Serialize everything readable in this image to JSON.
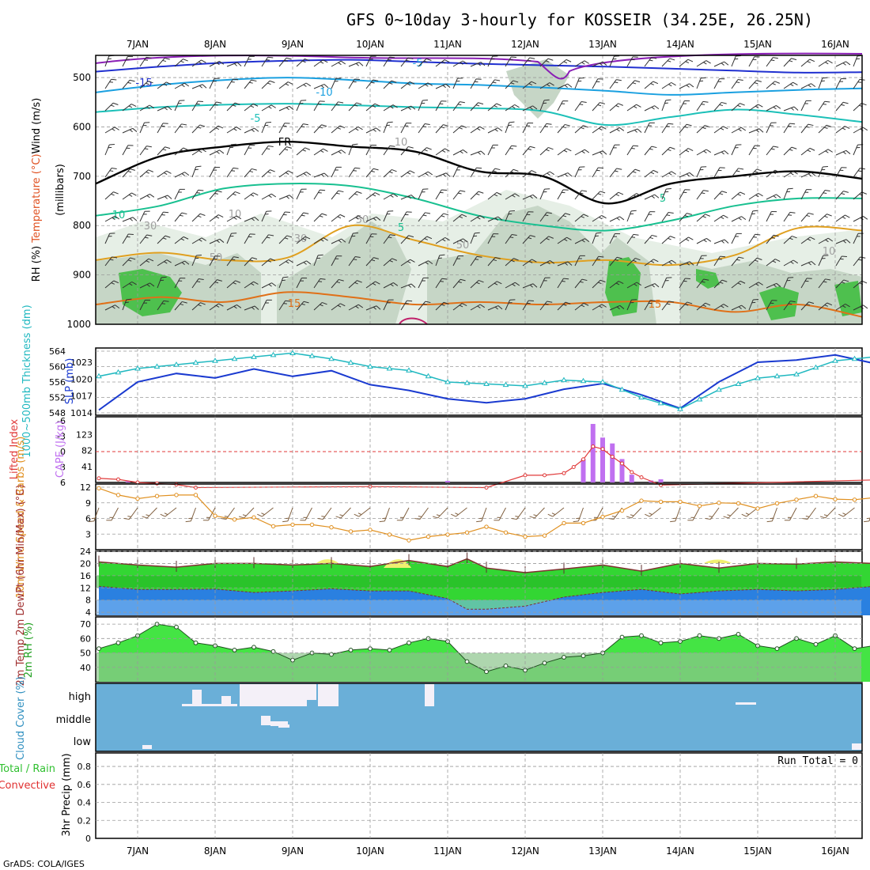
{
  "title": "GFS 0~10day 3-hourly for KOSSEIR (34.25E, 26.25N)",
  "credit": "GrADS: COLA/IGES",
  "colors": {
    "frame": "#000000",
    "grid": "#9a9a9a",
    "temp_cold_violet": "#8a1fb5",
    "temp_m15": "#2030d0",
    "temp_m10": "#1aa0e0",
    "temp_m5": "#1cc0b8",
    "temp_fr": "#000000",
    "temp_5": "#18c090",
    "temp_10": "#e0a020",
    "temp_15": "#e07018",
    "rh_light": "#e6efe6",
    "rh_mid": "#c6d6c6",
    "rh_dark": "#a8b8a8",
    "rh_green": "#4ec04e",
    "slp": "#1a3ad0",
    "thickness": "#20b8c0",
    "lifted": "#e03a3a",
    "cape": "#c070f0",
    "wind10": "#e09020",
    "wind10_barb": "#806040",
    "temp2m_fill": "#33d633",
    "dew_fill": "#2a80e0",
    "max_fill": "#f0f070",
    "rh2m_fill": "#44e444",
    "rh2m_base": "#8cc48c",
    "cloud_bg": "#6aafd8",
    "cloud_white": "#f4f0f8",
    "precip_total": "#30c030",
    "precip_conv": "#e03030"
  },
  "chart_data": [
    {
      "id": "upper_air",
      "type": "heatmap",
      "xlabel": "",
      "ylabel_words": [
        "RH (%)",
        "Temperature (°C)",
        "Wind (m/s)"
      ],
      "ylabel_unit": "(millibars)",
      "y_ticks": [
        500,
        600,
        700,
        800,
        900,
        1000
      ],
      "ylim": [
        455,
        1000
      ],
      "x_ticks": [
        "7JAN",
        "8JAN",
        "9JAN",
        "10JAN",
        "11JAN",
        "12JAN",
        "13JAN",
        "14JAN",
        "15JAN",
        "16JAN"
      ],
      "contour_labels": [
        "-15",
        "-10",
        "-5",
        "FR",
        "10",
        "5",
        "10",
        "50",
        "30",
        "50",
        "10",
        "5",
        "30",
        "50",
        "10",
        "15",
        "15",
        "-5"
      ],
      "isotherms": [
        {
          "label": "-15",
          "pressure": [
            488,
            478,
            470,
            466,
            464,
            468,
            472,
            475,
            478,
            482,
            486,
            490,
            489
          ]
        },
        {
          "label": "-10",
          "pressure": [
            530,
            515,
            505,
            500,
            505,
            512,
            515,
            520,
            527,
            535,
            530,
            525,
            522
          ]
        },
        {
          "label": "-5",
          "pressure": [
            570,
            560,
            555,
            553,
            556,
            560,
            562,
            568,
            596,
            580,
            565,
            575,
            590
          ]
        },
        {
          "label": "FR",
          "pressure": [
            715,
            660,
            640,
            630,
            640,
            650,
            690,
            700,
            755,
            715,
            700,
            690,
            705
          ]
        },
        {
          "label": "5",
          "pressure": [
            780,
            760,
            725,
            715,
            720,
            745,
            780,
            800,
            810,
            790,
            760,
            745,
            745
          ]
        },
        {
          "label": "10",
          "pressure": [
            870,
            855,
            870,
            865,
            800,
            830,
            860,
            875,
            870,
            880,
            860,
            805,
            810
          ]
        },
        {
          "label": "15",
          "pressure": [
            960,
            945,
            955,
            935,
            945,
            960,
            955,
            960,
            955,
            955,
            975,
            960,
            985
          ]
        }
      ]
    },
    {
      "id": "slp_thickness",
      "type": "line",
      "ylabel_left": "1000~500mb Thickness (dm)",
      "ylabel_right": "SLP (mb)",
      "left_ticks": [
        548,
        552,
        556,
        560,
        564
      ],
      "right_ticks": [
        1014,
        1017,
        1020,
        1023
      ],
      "x_hours": [
        0,
        12,
        24,
        36,
        48,
        60,
        72,
        84,
        96,
        108,
        120,
        132,
        144,
        156,
        168,
        180,
        192,
        204,
        216,
        228,
        240,
        252,
        264,
        270
      ],
      "slp": [
        1014.5,
        1019.5,
        1021,
        1020.2,
        1021.8,
        1020.5,
        1021.5,
        1019,
        1018,
        1016.5,
        1015.8,
        1016.5,
        1018.2,
        1019.2,
        1017.2,
        1014.8,
        1019.5,
        1023,
        1023.4,
        1024.3,
        1022.8,
        1023.8,
        1022,
        1022.5
      ],
      "thickness": [
        557.5,
        559.5,
        560.5,
        561.5,
        562.5,
        563.5,
        562,
        560,
        559,
        556,
        555.5,
        555,
        556.5,
        556,
        552,
        549,
        554,
        557,
        558,
        561.5,
        562.5,
        562.5,
        563,
        560
      ]
    },
    {
      "id": "cape_li",
      "type": "bar",
      "ylabel_left": "Lifted Index",
      "ylabel_right": "CAPE (J/kg)",
      "left_ticks": [
        "6",
        "3",
        "0",
        "-3",
        "-6"
      ],
      "right_ticks": [
        "41",
        "82",
        "123"
      ],
      "cape_hours": [
        9,
        108,
        150,
        153,
        156,
        159,
        162,
        165,
        171,
        174
      ],
      "cape_values": [
        3,
        4,
        60,
        150,
        115,
        100,
        60,
        20,
        5,
        8
      ],
      "li_hours": [
        0,
        6,
        12,
        18,
        24,
        30,
        84,
        120,
        132,
        138,
        144,
        147,
        150,
        153,
        156,
        159,
        162,
        165,
        168,
        174,
        240,
        246,
        252,
        258,
        264,
        270
      ],
      "li_values": [
        5.2,
        5.4,
        6,
        6.2,
        6.4,
        7,
        6.8,
        7,
        4.6,
        4.6,
        4.2,
        3,
        1.5,
        -1,
        -0.5,
        1,
        2.3,
        4,
        5,
        6.5,
        5.5,
        4.8,
        5.5,
        6.5,
        6.8,
        6.4
      ]
    },
    {
      "id": "wind10m",
      "type": "line",
      "ylabel": "10m Wind Speed & Barbs (m/s)",
      "y_ticks": [
        3,
        6,
        9,
        12
      ],
      "ylim": [
        0,
        12
      ],
      "x_hours": [
        0,
        6,
        12,
        18,
        24,
        30,
        36,
        42,
        48,
        54,
        60,
        66,
        72,
        78,
        84,
        90,
        96,
        102,
        108,
        114,
        120,
        126,
        132,
        138,
        144,
        150,
        156,
        162,
        168,
        174,
        180,
        186,
        192,
        198,
        204,
        210,
        216,
        222,
        228,
        234,
        240,
        246,
        252,
        258,
        264,
        270
      ],
      "values": [
        11.8,
        10.5,
        9.8,
        10.3,
        10.5,
        10.5,
        6.5,
        5.8,
        6.2,
        4.5,
        4.8,
        4.8,
        4.3,
        3.5,
        3.8,
        2.9,
        1.8,
        2.5,
        2.9,
        3.3,
        4.4,
        3.3,
        2.5,
        2.7,
        5.1,
        5.1,
        6.3,
        7.5,
        9.4,
        9.2,
        9.2,
        8.4,
        9.0,
        8.9,
        7.9,
        8.9,
        9.6,
        10.3,
        9.7,
        9.6,
        10.0,
        10.5,
        10.2,
        10.8,
        11.2,
        11.0
      ]
    },
    {
      "id": "temp2m",
      "type": "area",
      "ylabel": "2m Temp 2m DewPt (6hr Min/Max) (°C)",
      "y_ticks": [
        4,
        8,
        12,
        16,
        20,
        24
      ],
      "ylim": [
        3,
        24
      ],
      "x_hours": [
        0,
        12,
        24,
        36,
        48,
        60,
        72,
        84,
        96,
        108,
        114,
        120,
        132,
        144,
        156,
        168,
        180,
        192,
        204,
        216,
        228,
        240,
        252,
        264,
        270
      ],
      "temp": [
        20.5,
        19.5,
        18.8,
        20,
        20,
        19.5,
        20,
        19,
        21,
        19,
        21.5,
        18.5,
        17,
        18.2,
        19.5,
        17.5,
        20,
        18.5,
        20,
        19.8,
        20.5,
        20,
        19.5,
        18.5,
        18.5
      ],
      "dewpt": [
        12.5,
        11.5,
        11.5,
        11.6,
        10.5,
        11,
        11.7,
        11,
        11,
        8.5,
        5,
        5,
        6,
        9,
        10.5,
        11.5,
        10,
        11,
        11.5,
        11,
        11.5,
        12.5,
        12,
        12,
        12.5
      ]
    },
    {
      "id": "rh2m",
      "type": "area",
      "ylabel": "2m RH (%)",
      "y_ticks": [
        40,
        50,
        60,
        70
      ],
      "ylim": [
        30,
        75
      ],
      "x_hours": [
        0,
        6,
        12,
        18,
        24,
        30,
        36,
        42,
        48,
        54,
        60,
        66,
        72,
        78,
        84,
        90,
        96,
        102,
        108,
        114,
        120,
        126,
        132,
        138,
        144,
        150,
        156,
        162,
        168,
        174,
        180,
        186,
        192,
        198,
        204,
        210,
        216,
        222,
        228,
        234,
        240,
        246,
        252,
        258,
        264,
        270
      ],
      "values": [
        53,
        57,
        62,
        70,
        68,
        57,
        55,
        52,
        54,
        51,
        45,
        50,
        49,
        52,
        53,
        52,
        57,
        60,
        58,
        44,
        37,
        41,
        38,
        43,
        47,
        48,
        50,
        61,
        62,
        57,
        58,
        62,
        60,
        63,
        55,
        53,
        60,
        56,
        62,
        53,
        55,
        66,
        71,
        68,
        54,
        73
      ]
    },
    {
      "id": "cloud_cover",
      "type": "bar",
      "ylabel": "Cloud Cover (%)",
      "y_ticks": [
        "high",
        "middle",
        "low"
      ]
    },
    {
      "id": "precip",
      "type": "bar",
      "ylabel_left": "Total / Rain",
      "ylabel_mid": "Convective",
      "ylabel": "3hr Precip (mm)",
      "y_ticks": [
        "0",
        "0.2",
        "0.4",
        "0.6",
        "0.8"
      ],
      "ylim": [
        0,
        0.95
      ],
      "run_total": "Run Total = 0",
      "x_ticks": [
        "7JAN",
        "8JAN",
        "9JAN",
        "10JAN",
        "11JAN",
        "12JAN",
        "13JAN",
        "14JAN",
        "15JAN",
        "16JAN"
      ]
    }
  ]
}
